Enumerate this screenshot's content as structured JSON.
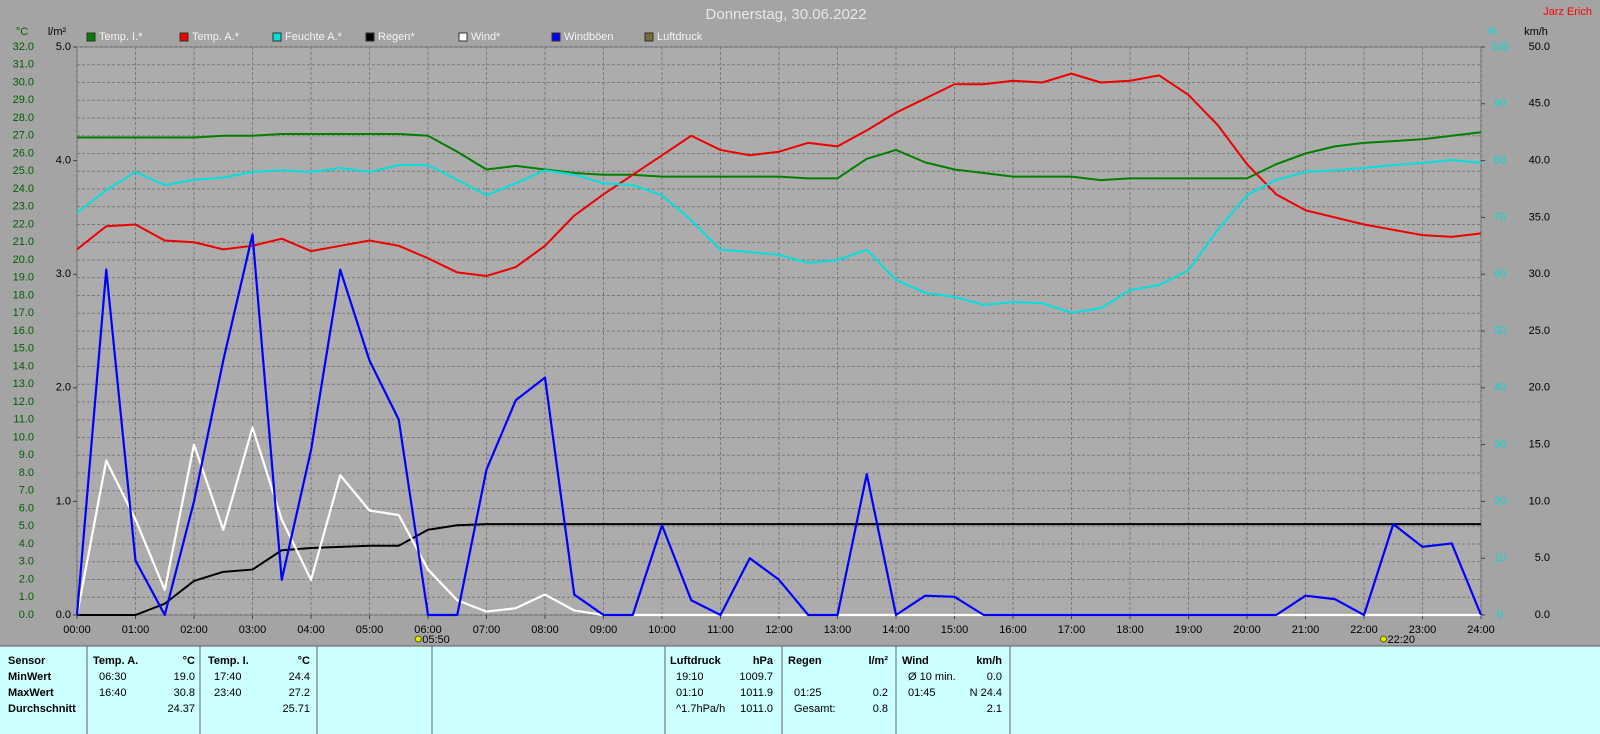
{
  "chart_data": {
    "type": "line",
    "title": "Donnerstag, 30.06.2022",
    "author": "Jarz Erich",
    "y_label": "°C",
    "y2_label": "l/m²",
    "y3_label": "%",
    "y4_label": "km/h",
    "x": [
      0,
      0.5,
      1,
      1.5,
      2,
      2.5,
      3,
      3.5,
      4,
      4.5,
      5,
      5.5,
      6,
      6.5,
      7,
      7.5,
      8,
      8.5,
      9,
      9.5,
      10,
      10.5,
      11,
      11.5,
      12,
      12.5,
      13,
      13.5,
      14,
      14.5,
      15,
      15.5,
      16,
      16.5,
      17,
      17.5,
      18,
      18.5,
      19,
      19.5,
      20,
      20.5,
      21,
      21.5,
      22,
      22.5,
      23,
      23.5,
      24
    ],
    "xlim": [
      0,
      24
    ],
    "xticks": [
      {
        "value": 0,
        "label": "00:00"
      },
      {
        "value": 1,
        "label": "01:00"
      },
      {
        "value": 2,
        "label": "02:00"
      },
      {
        "value": 3,
        "label": "03:00"
      },
      {
        "value": 4,
        "label": "04:00"
      },
      {
        "value": 5,
        "label": "05:00"
      },
      {
        "value": 6,
        "label": "06:00"
      },
      {
        "value": 7,
        "label": "07:00"
      },
      {
        "value": 8,
        "label": "08:00"
      },
      {
        "value": 9,
        "label": "09:00"
      },
      {
        "value": 10,
        "label": "10:00"
      },
      {
        "value": 11,
        "label": "11:00"
      },
      {
        "value": 12,
        "label": "12:00"
      },
      {
        "value": 13,
        "label": "13:00"
      },
      {
        "value": 14,
        "label": "14:00"
      },
      {
        "value": 15,
        "label": "15:00"
      },
      {
        "value": 16,
        "label": "16:00"
      },
      {
        "value": 17,
        "label": "17:00"
      },
      {
        "value": 18,
        "label": "18:00"
      },
      {
        "value": 19,
        "label": "19:00"
      },
      {
        "value": 20,
        "label": "20:00"
      },
      {
        "value": 21,
        "label": "21:00"
      },
      {
        "value": 22,
        "label": "22:00"
      },
      {
        "value": 23,
        "label": "23:00"
      },
      {
        "value": 24,
        "label": "24:00"
      }
    ],
    "ylim": [
      0,
      32
    ],
    "yticks": [
      {
        "value": 0,
        "label": "0.0"
      },
      {
        "value": 1,
        "label": "1.0"
      },
      {
        "value": 2,
        "label": "2.0"
      },
      {
        "value": 3,
        "label": "3.0"
      },
      {
        "value": 4,
        "label": "4.0"
      },
      {
        "value": 5,
        "label": "5.0"
      },
      {
        "value": 6,
        "label": "6.0"
      },
      {
        "value": 7,
        "label": "7.0"
      },
      {
        "value": 8,
        "label": "8.0"
      },
      {
        "value": 9,
        "label": "9.0"
      },
      {
        "value": 10,
        "label": "10.0"
      },
      {
        "value": 11,
        "label": "11.0"
      },
      {
        "value": 12,
        "label": "12.0"
      },
      {
        "value": 13,
        "label": "13.0"
      },
      {
        "value": 14,
        "label": "14.0"
      },
      {
        "value": 15,
        "label": "15.0"
      },
      {
        "value": 16,
        "label": "16.0"
      },
      {
        "value": 17,
        "label": "17.0"
      },
      {
        "value": 18,
        "label": "18.0"
      },
      {
        "value": 19,
        "label": "19.0"
      },
      {
        "value": 20,
        "label": "20.0"
      },
      {
        "value": 21,
        "label": "21.0"
      },
      {
        "value": 22,
        "label": "22.0"
      },
      {
        "value": 23,
        "label": "23.0"
      },
      {
        "value": 24,
        "label": "24.0"
      },
      {
        "value": 25,
        "label": "25.0"
      },
      {
        "value": 26,
        "label": "26.0"
      },
      {
        "value": 27,
        "label": "27.0"
      },
      {
        "value": 28,
        "label": "28.0"
      },
      {
        "value": 29,
        "label": "29.0"
      },
      {
        "value": 30,
        "label": "30.0"
      },
      {
        "value": 31,
        "label": "31.0"
      },
      {
        "value": 32,
        "label": "32.0"
      }
    ],
    "y2lim": [
      0,
      5
    ],
    "y2ticks": [
      {
        "value": 0,
        "label": "0.0"
      },
      {
        "value": 1,
        "label": "1.0"
      },
      {
        "value": 2,
        "label": "2.0"
      },
      {
        "value": 3,
        "label": "3.0"
      },
      {
        "value": 4,
        "label": "4.0"
      },
      {
        "value": 5,
        "label": "5.0"
      }
    ],
    "y3lim": [
      0,
      100
    ],
    "y3ticks": [
      0,
      10,
      20,
      30,
      40,
      50,
      60,
      70,
      80,
      90,
      100
    ],
    "y4lim": [
      0,
      50
    ],
    "y4ticks": [
      {
        "value": 0,
        "label": "0.0"
      },
      {
        "value": 5,
        "label": "5.0"
      },
      {
        "value": 10,
        "label": "10.0"
      },
      {
        "value": 15,
        "label": "15.0"
      },
      {
        "value": 20,
        "label": "20.0"
      },
      {
        "value": 25,
        "label": "25.0"
      },
      {
        "value": 30,
        "label": "30.0"
      },
      {
        "value": 35,
        "label": "35.0"
      },
      {
        "value": 40,
        "label": "40.0"
      },
      {
        "value": 45,
        "label": "45.0"
      },
      {
        "value": 50,
        "label": "50.0"
      }
    ],
    "grid": true,
    "sun_events": [
      {
        "value": 5.8333,
        "label": "05:50"
      },
      {
        "value": 22.3333,
        "label": "22:20"
      }
    ],
    "series": [
      {
        "name": "Temp. I.*",
        "color": "#008000",
        "axis": "y",
        "values": [
          26.9,
          26.9,
          26.9,
          26.9,
          26.9,
          27.0,
          27.0,
          27.1,
          27.1,
          27.1,
          27.1,
          27.1,
          27.0,
          26.1,
          25.1,
          25.3,
          25.1,
          24.9,
          24.8,
          24.8,
          24.7,
          24.7,
          24.7,
          24.7,
          24.7,
          24.6,
          24.6,
          25.7,
          26.2,
          25.5,
          25.1,
          24.9,
          24.7,
          24.7,
          24.7,
          24.5,
          24.6,
          24.6,
          24.6,
          24.6,
          24.6,
          25.4,
          26.0,
          26.4,
          26.6,
          26.7,
          26.8,
          27.0,
          27.2
        ]
      },
      {
        "name": "Temp. A.*",
        "color": "#ee0000",
        "axis": "y",
        "values": [
          20.6,
          21.9,
          22.0,
          21.1,
          21.0,
          20.6,
          20.8,
          21.2,
          20.5,
          20.8,
          21.1,
          20.8,
          20.1,
          19.3,
          19.1,
          19.6,
          20.8,
          22.5,
          23.7,
          24.8,
          25.9,
          27.0,
          26.2,
          25.9,
          26.1,
          26.6,
          26.4,
          27.3,
          28.3,
          29.1,
          29.9,
          29.9,
          30.1,
          30.0,
          30.5,
          30.0,
          30.1,
          30.4,
          29.3,
          27.6,
          25.4,
          23.7,
          22.8,
          22.4,
          22.0,
          21.7,
          21.4,
          21.3,
          21.5
        ]
      },
      {
        "name": "Feuchte A.*",
        "color": "#00e0e0",
        "axis": "y3",
        "values": [
          70.8,
          74.8,
          78,
          75.7,
          76.6,
          77,
          78,
          78.3,
          78,
          78.7,
          78,
          79.2,
          79.2,
          76.6,
          73.9,
          76,
          78.3,
          77.5,
          76,
          75.7,
          73.9,
          69.5,
          64.3,
          63.9,
          63.4,
          62,
          62.5,
          64.3,
          59,
          56.7,
          56,
          54.6,
          55.1,
          54.9,
          53.2,
          54,
          57.2,
          58.1,
          60.7,
          67.8,
          73.9,
          76.6,
          78,
          78.3,
          78.7,
          79.2,
          79.6,
          80.1,
          79.6
        ]
      },
      {
        "name": "Regen*",
        "color": "#000000",
        "axis": "y2",
        "values": [
          0,
          0,
          0,
          0.1,
          0.3,
          0.38,
          0.4,
          0.57,
          0.59,
          0.6,
          0.61,
          0.61,
          0.75,
          0.79,
          0.8,
          0.8,
          0.8,
          0.8,
          0.8,
          0.8,
          0.8,
          0.8,
          0.8,
          0.8,
          0.8,
          0.8,
          0.8,
          0.8,
          0.8,
          0.8,
          0.8,
          0.8,
          0.8,
          0.8,
          0.8,
          0.8,
          0.8,
          0.8,
          0.8,
          0.8,
          0.8,
          0.8,
          0.8,
          0.8,
          0.8,
          0.8,
          0.8,
          0.8,
          0.8
        ]
      },
      {
        "name": "Wind*",
        "color": "#ffffff",
        "axis": "y4",
        "values": [
          0,
          13.6,
          8.4,
          2.2,
          15,
          7.5,
          16.5,
          8.4,
          3.1,
          12.3,
          9.2,
          8.8,
          4,
          1.3,
          0.3,
          0.6,
          1.8,
          0.4,
          0,
          0,
          0,
          0,
          0,
          0,
          0,
          0,
          0,
          0,
          0,
          0,
          0,
          0,
          0,
          0,
          0,
          0,
          0,
          0,
          0,
          0,
          0,
          0,
          0,
          0,
          0,
          0,
          0,
          0,
          0
        ]
      },
      {
        "name": "Windböen",
        "color": "#0000ff",
        "axis": "y4",
        "values": [
          0,
          30.4,
          4.8,
          0,
          10,
          22.4,
          33.5,
          3.1,
          14.5,
          30.4,
          22.4,
          17.2,
          0,
          0,
          12.8,
          18.9,
          20.9,
          1.8,
          0,
          0,
          7.9,
          1.3,
          0,
          5,
          3.1,
          0,
          0,
          12.4,
          0,
          1.7,
          1.6,
          0,
          0,
          0,
          0,
          0,
          0,
          0,
          0,
          0,
          0,
          0,
          1.7,
          1.4,
          0,
          8,
          6,
          6.3,
          0
        ]
      },
      {
        "name": "Luftdruck",
        "color": "#707030"
      }
    ]
  },
  "stats": {
    "row_labels": [
      "Sensor",
      "MinWert",
      "MaxWert",
      "Durchschnitt"
    ],
    "groups": [
      {
        "name": "Temp. A.",
        "unit": "°C",
        "rows": [
          [
            "06:30",
            "19.0"
          ],
          [
            "16:40",
            "30.8"
          ],
          [
            null,
            "24.37"
          ]
        ]
      },
      {
        "name": "Temp. I.",
        "unit": "°C",
        "rows": [
          [
            "17:40",
            "24.4"
          ],
          [
            "23:40",
            "27.2"
          ],
          [
            null,
            "25.71"
          ]
        ]
      },
      {
        "name": "Luftdruck",
        "unit": "hPa",
        "rows": [
          [
            "19:10",
            "1009.7"
          ],
          [
            "01:10",
            "1011.9"
          ],
          [
            "^1.7hPa/h",
            "1011.0"
          ]
        ]
      },
      {
        "name": "Regen",
        "unit": "l/m²",
        "rows": [
          [
            null,
            null
          ],
          [
            "01:25",
            "0.2"
          ],
          [
            "Gesamt:",
            "0.8"
          ]
        ]
      },
      {
        "name": "Wind",
        "unit": "km/h",
        "rows": [
          [
            "Ø 10 min.",
            "0.0"
          ],
          [
            "01:45",
            "N 24.4"
          ],
          [
            null,
            "2.1"
          ]
        ]
      }
    ]
  }
}
